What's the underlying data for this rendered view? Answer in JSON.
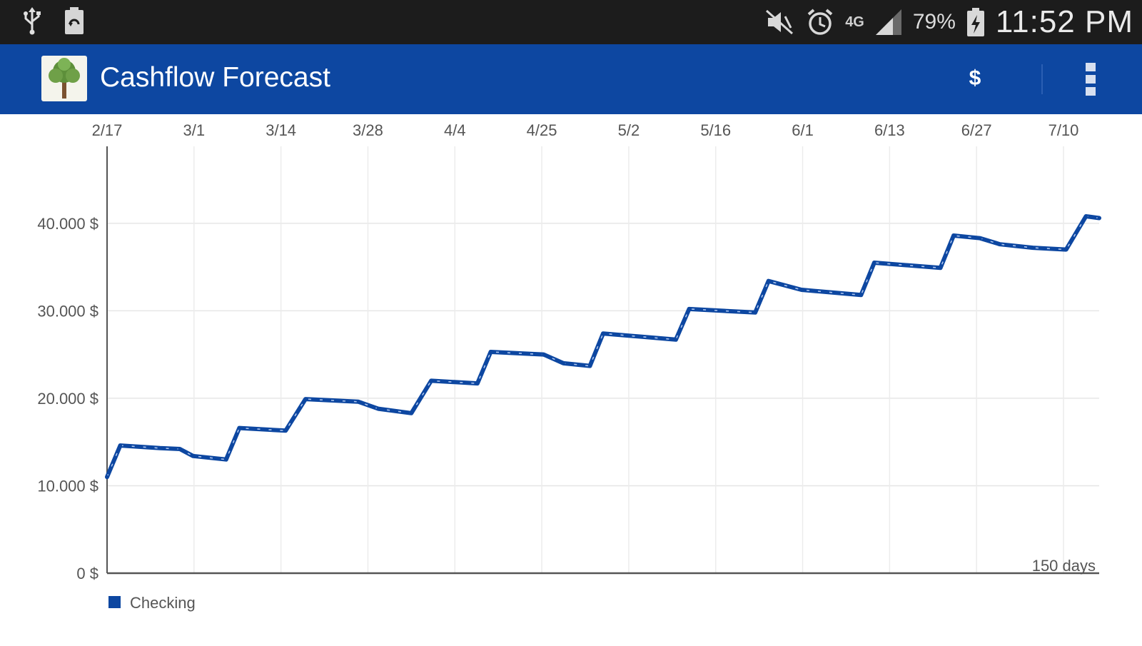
{
  "status_bar": {
    "icons": [
      "usb-icon",
      "recycle-battery-icon",
      "mute-icon",
      "alarm-icon",
      "network-4g-icon",
      "signal-icon",
      "battery-charging-icon"
    ],
    "network_type": "4G",
    "battery_percent": "79%",
    "time": "11:52 PM"
  },
  "app_bar": {
    "title": "Cashflow Forecast",
    "currency_label": "$",
    "icons": [
      "app-logo-tree-icon",
      "overflow-menu-icon"
    ],
    "color": "#0d47a1"
  },
  "chart_data": {
    "type": "line",
    "x_tick_labels": [
      "2/17",
      "3/1",
      "3/14",
      "3/28",
      "4/4",
      "4/25",
      "5/2",
      "5/16",
      "6/1",
      "6/13",
      "6/27",
      "7/10"
    ],
    "y_tick_labels": [
      "0 $",
      "10.000 $",
      "20.000 $",
      "30.000 $",
      "40.000 $"
    ],
    "y_ticks": [
      0,
      10000,
      20000,
      30000,
      40000
    ],
    "ylim": [
      0,
      48800
    ],
    "xlim": [
      0,
      150
    ],
    "x_unit": "days",
    "range_label": "150 days",
    "grid": true,
    "legend_position": "bottom-left",
    "series": [
      {
        "name": "Checking",
        "color": "#0d47a1",
        "points": [
          [
            0,
            11000
          ],
          [
            2,
            14600
          ],
          [
            8,
            14300
          ],
          [
            11,
            14200
          ],
          [
            13,
            13400
          ],
          [
            18,
            13000
          ],
          [
            20,
            16600
          ],
          [
            27,
            16300
          ],
          [
            30,
            19900
          ],
          [
            38,
            19600
          ],
          [
            41,
            18800
          ],
          [
            46,
            18300
          ],
          [
            49,
            22000
          ],
          [
            56,
            21700
          ],
          [
            58,
            25300
          ],
          [
            66,
            25000
          ],
          [
            69,
            24000
          ],
          [
            73,
            23700
          ],
          [
            75,
            27400
          ],
          [
            86,
            26700
          ],
          [
            88,
            30200
          ],
          [
            98,
            29800
          ],
          [
            100,
            33400
          ],
          [
            105,
            32400
          ],
          [
            114,
            31800
          ],
          [
            116,
            35500
          ],
          [
            126,
            34900
          ],
          [
            128,
            38600
          ],
          [
            132,
            38300
          ],
          [
            135,
            37600
          ],
          [
            140,
            37200
          ],
          [
            145,
            37000
          ],
          [
            148,
            40800
          ],
          [
            150,
            40600
          ]
        ]
      }
    ]
  }
}
